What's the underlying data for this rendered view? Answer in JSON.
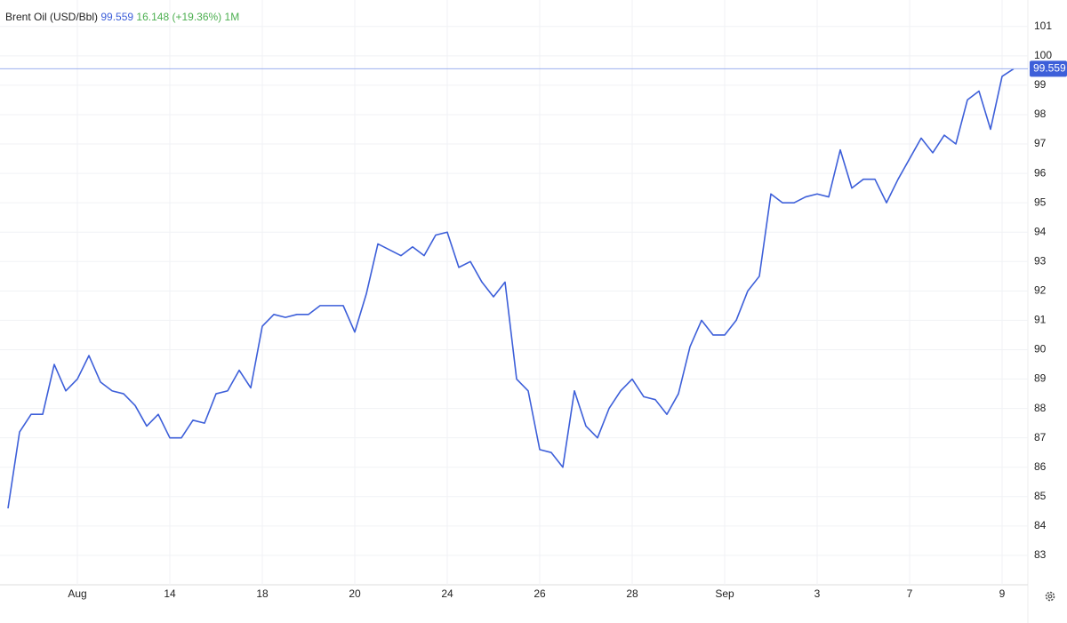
{
  "chart_data": {
    "type": "line",
    "series": [
      {
        "name": "Brent Oil (USD/Bbl)",
        "color": "#3d5fd9",
        "values": [
          84.6,
          87.2,
          87.8,
          87.8,
          89.5,
          88.6,
          89.0,
          89.8,
          88.9,
          88.6,
          88.5,
          88.1,
          87.4,
          87.8,
          87.0,
          87.0,
          87.6,
          87.5,
          88.5,
          88.6,
          89.3,
          88.7,
          90.8,
          91.2,
          91.1,
          91.2,
          91.2,
          91.5,
          91.5,
          91.5,
          90.6,
          91.9,
          93.6,
          93.4,
          93.2,
          93.5,
          93.2,
          93.9,
          94.0,
          92.8,
          93.0,
          92.3,
          91.8,
          92.3,
          89.0,
          88.6,
          86.6,
          86.5,
          86.0,
          88.6,
          87.4,
          87.0,
          88.0,
          88.6,
          89.0,
          88.4,
          88.3,
          87.8,
          88.5,
          90.1,
          91.0,
          90.5,
          90.5,
          91.0,
          92.0,
          92.5,
          95.3,
          95.0,
          95.0,
          95.2,
          95.3,
          95.2,
          96.8,
          95.5,
          95.8,
          95.8,
          95.0,
          95.8,
          96.5,
          97.2,
          96.7,
          97.3,
          97.0,
          98.5,
          98.8,
          97.5,
          99.3,
          99.559
        ]
      }
    ],
    "last_value": 99.559,
    "change": 16.148,
    "change_label": "(+19.36%)",
    "period": "1M",
    "categories": [
      null,
      null,
      null,
      null,
      null,
      null,
      "Aug",
      null,
      null,
      null,
      null,
      null,
      null,
      null,
      "14",
      null,
      null,
      null,
      null,
      null,
      null,
      null,
      "18",
      null,
      null,
      null,
      null,
      null,
      null,
      null,
      "20",
      null,
      null,
      null,
      null,
      null,
      null,
      null,
      "24",
      null,
      null,
      null,
      null,
      null,
      null,
      null,
      "26",
      null,
      null,
      null,
      null,
      null,
      null,
      null,
      "28",
      null,
      null,
      null,
      null,
      null,
      null,
      null,
      "Sep",
      null,
      null,
      null,
      null,
      null,
      null,
      null,
      "3",
      null,
      null,
      null,
      null,
      null,
      null,
      null,
      "7",
      null,
      null,
      null,
      null,
      null,
      null,
      null,
      "9",
      null
    ],
    "ylim": [
      82,
      101.9
    ],
    "yticks": [
      83,
      84,
      85,
      86,
      87,
      88,
      89,
      90,
      91,
      92,
      93,
      94,
      95,
      96,
      97,
      98,
      99,
      100,
      101
    ],
    "grid": true
  }
}
